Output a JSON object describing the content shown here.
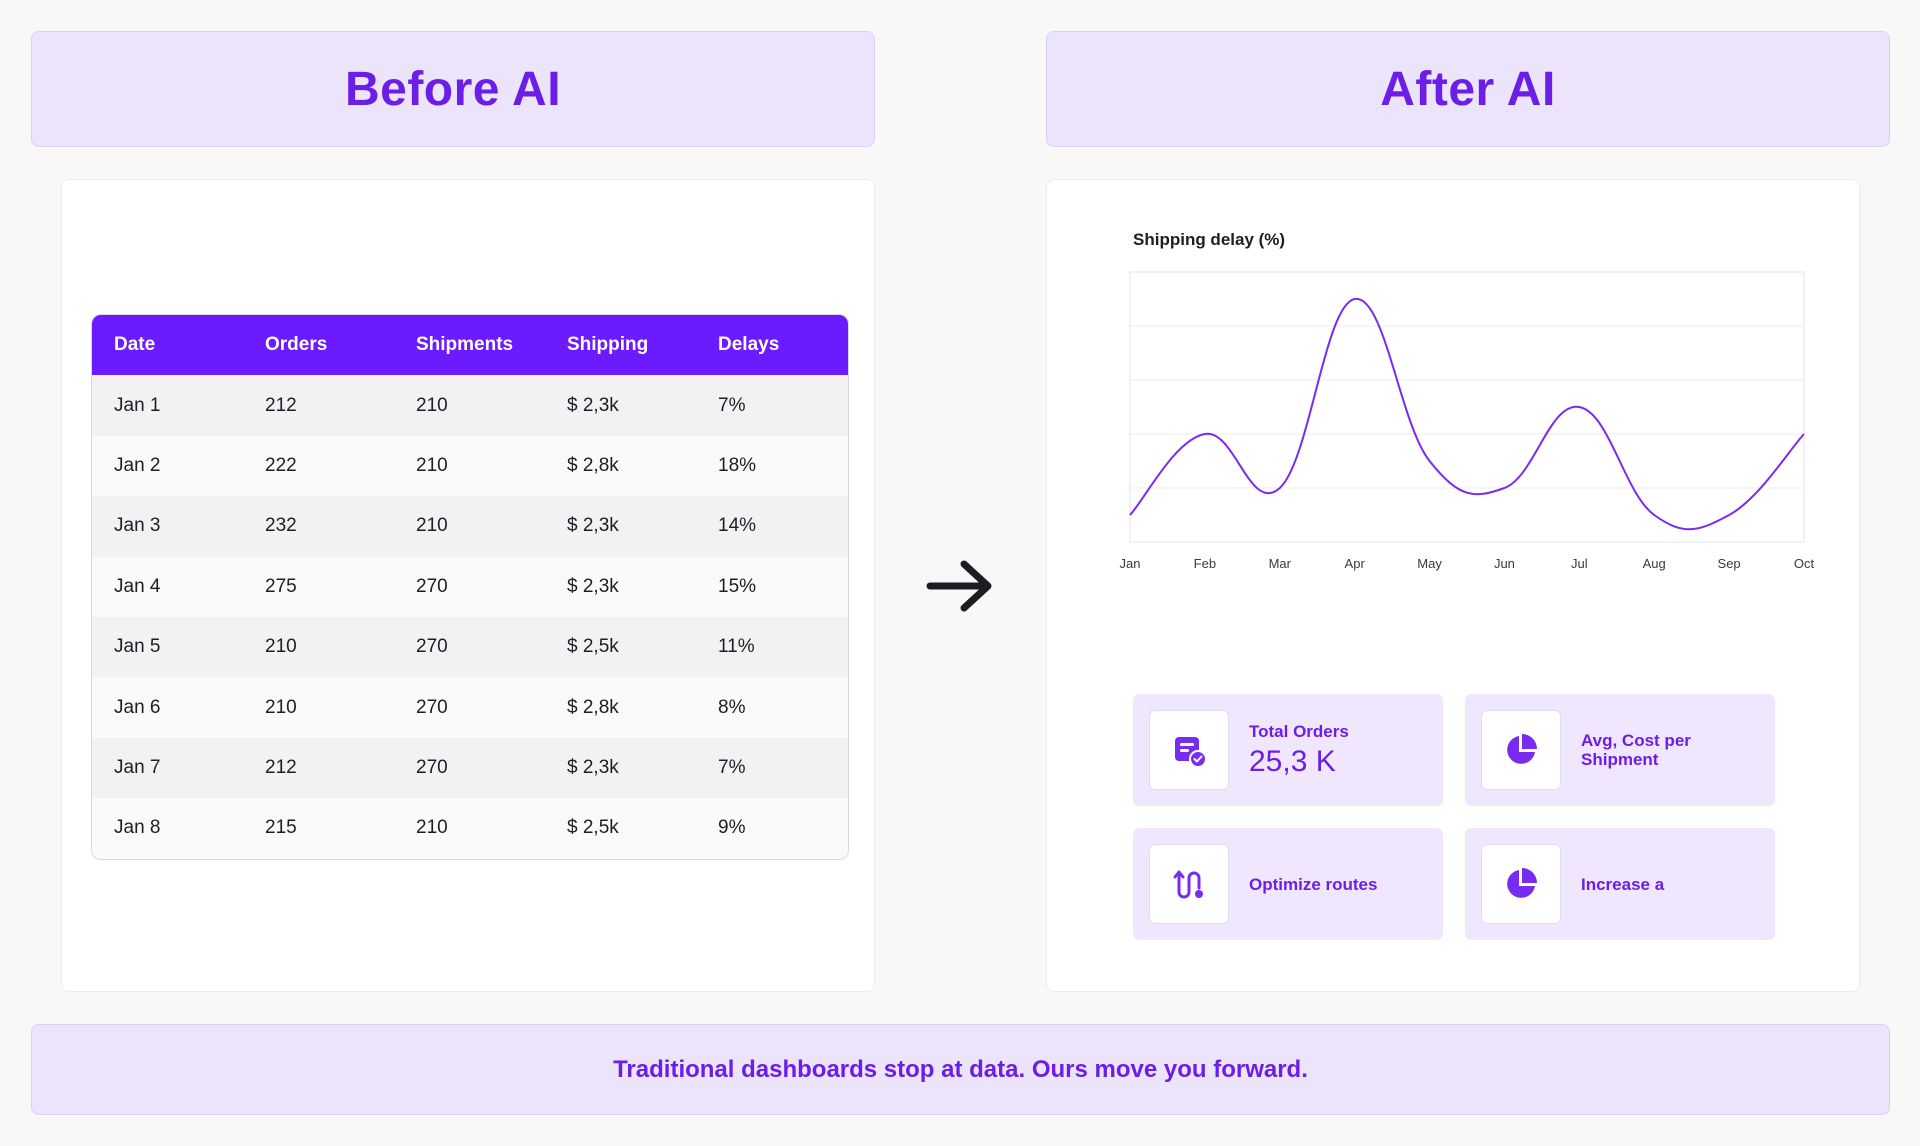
{
  "headers": {
    "before": "Before AI",
    "after": "After AI"
  },
  "table": {
    "columns": [
      "Date",
      "Orders",
      "Shipments",
      "Shipping",
      "Delays"
    ],
    "rows": [
      [
        "Jan 1",
        "212",
        "210",
        "$ 2,3k",
        "7%"
      ],
      [
        "Jan 2",
        "222",
        "210",
        "$ 2,8k",
        "18%"
      ],
      [
        "Jan 3",
        "232",
        "210",
        "$ 2,3k",
        "14%"
      ],
      [
        "Jan 4",
        "275",
        "270",
        "$ 2,3k",
        "15%"
      ],
      [
        "Jan 5",
        "210",
        "270",
        "$ 2,5k",
        "11%"
      ],
      [
        "Jan 6",
        "210",
        "270",
        "$ 2,8k",
        "8%"
      ],
      [
        "Jan 7",
        "212",
        "270",
        "$ 2,3k",
        "7%"
      ],
      [
        "Jan 8",
        "215",
        "210",
        "$ 2,5k",
        "9%"
      ]
    ]
  },
  "chart_data": {
    "type": "line",
    "title": "Shipping delay (%)",
    "categories": [
      "Jan",
      "Feb",
      "Mar",
      "Apr",
      "May",
      "Jun",
      "Jul",
      "Aug",
      "Sep",
      "Oct"
    ],
    "series": [
      {
        "name": "Shipping delay",
        "values": [
          1,
          4,
          2,
          9,
          3,
          2,
          5,
          1,
          1,
          4
        ]
      }
    ],
    "ylim": [
      0,
      10
    ],
    "grid": true,
    "color": "#7a2bf0"
  },
  "tiles": {
    "total_orders": {
      "label": "Total Orders",
      "value": "25,3 K"
    },
    "avg_cost": {
      "label": "Avg, Cost per Shipment"
    },
    "optimize": {
      "label": "Optimize routes"
    },
    "increase": {
      "label": "Increase a"
    }
  },
  "footer": {
    "text": "Traditional dashboards stop at data. Ours move you forward."
  },
  "colors": {
    "accent": "#6c1ee9",
    "table_header": "#6c1aff",
    "banner_bg": "#ece4fb"
  }
}
